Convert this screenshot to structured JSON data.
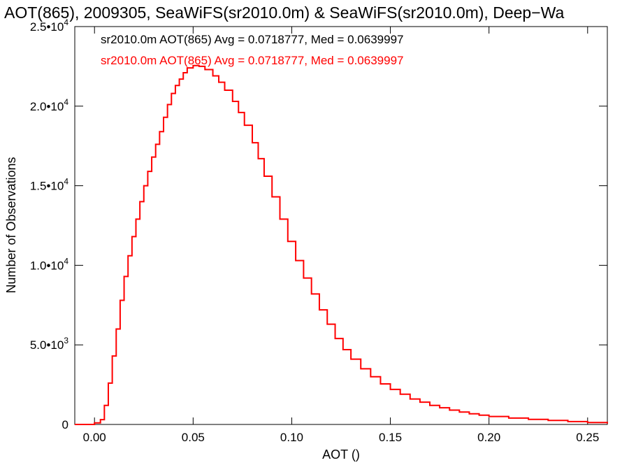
{
  "chart_data": {
    "type": "histogram-step",
    "title": "AOT(865), 2009305, SeaWiFS(sr2010.0m) & SeaWiFS(sr2010.0m), Deep−Wa",
    "xlabel": "AOT ()",
    "ylabel": "Number of Observations",
    "xlim": [
      -0.01,
      0.26
    ],
    "ylim": [
      0,
      25000
    ],
    "x_ticks": [
      {
        "value": 0.0,
        "label": "0.00"
      },
      {
        "value": 0.05,
        "label": "0.05"
      },
      {
        "value": 0.1,
        "label": "0.10"
      },
      {
        "value": 0.15,
        "label": "0.15"
      },
      {
        "value": 0.2,
        "label": "0.20"
      },
      {
        "value": 0.25,
        "label": "0.25"
      }
    ],
    "y_ticks": [
      {
        "value": 0,
        "mant": "0",
        "exp": ""
      },
      {
        "value": 5000,
        "mant": "5.0•10",
        "exp": "3"
      },
      {
        "value": 10000,
        "mant": "1.0•10",
        "exp": "4"
      },
      {
        "value": 15000,
        "mant": "1.5•10",
        "exp": "4"
      },
      {
        "value": 20000,
        "mant": "2.0•10",
        "exp": "4"
      },
      {
        "value": 25000,
        "mant": "2.5•10",
        "exp": "4"
      }
    ],
    "legend": [
      {
        "text": "sr2010.0m AOT(865) Avg = 0.0718777, Med = 0.0639997",
        "color": "#000000"
      },
      {
        "text": "sr2010.0m AOT(865) Avg = 0.0718777, Med = 0.0639997",
        "color": "#ff0000"
      }
    ],
    "series": [
      {
        "color": "#ff0000",
        "points": [
          [
            -0.01,
            0
          ],
          [
            0.0,
            100
          ],
          [
            0.003,
            300
          ],
          [
            0.005,
            1200
          ],
          [
            0.007,
            2600
          ],
          [
            0.009,
            4300
          ],
          [
            0.011,
            6000
          ],
          [
            0.013,
            7800
          ],
          [
            0.015,
            9300
          ],
          [
            0.017,
            10600
          ],
          [
            0.019,
            11800
          ],
          [
            0.021,
            12900
          ],
          [
            0.023,
            14000
          ],
          [
            0.025,
            15000
          ],
          [
            0.027,
            15900
          ],
          [
            0.029,
            16800
          ],
          [
            0.031,
            17600
          ],
          [
            0.033,
            18400
          ],
          [
            0.035,
            19300
          ],
          [
            0.037,
            20100
          ],
          [
            0.039,
            20800
          ],
          [
            0.041,
            21300
          ],
          [
            0.043,
            21700
          ],
          [
            0.045,
            22100
          ],
          [
            0.047,
            22400
          ],
          [
            0.05,
            22550
          ],
          [
            0.053,
            22500
          ],
          [
            0.056,
            22300
          ],
          [
            0.06,
            21900
          ],
          [
            0.063,
            21500
          ],
          [
            0.066,
            21000
          ],
          [
            0.07,
            20300
          ],
          [
            0.073,
            19600
          ],
          [
            0.076,
            18800
          ],
          [
            0.08,
            17700
          ],
          [
            0.083,
            16700
          ],
          [
            0.086,
            15600
          ],
          [
            0.09,
            14300
          ],
          [
            0.094,
            12900
          ],
          [
            0.098,
            11500
          ],
          [
            0.102,
            10300
          ],
          [
            0.106,
            9200
          ],
          [
            0.11,
            8200
          ],
          [
            0.114,
            7200
          ],
          [
            0.118,
            6300
          ],
          [
            0.122,
            5400
          ],
          [
            0.126,
            4700
          ],
          [
            0.13,
            4100
          ],
          [
            0.135,
            3500
          ],
          [
            0.14,
            3000
          ],
          [
            0.145,
            2550
          ],
          [
            0.15,
            2200
          ],
          [
            0.155,
            1900
          ],
          [
            0.16,
            1600
          ],
          [
            0.165,
            1400
          ],
          [
            0.17,
            1200
          ],
          [
            0.175,
            1050
          ],
          [
            0.18,
            900
          ],
          [
            0.185,
            780
          ],
          [
            0.19,
            670
          ],
          [
            0.195,
            580
          ],
          [
            0.2,
            500
          ],
          [
            0.21,
            400
          ],
          [
            0.22,
            320
          ],
          [
            0.23,
            250
          ],
          [
            0.24,
            180
          ],
          [
            0.25,
            120
          ],
          [
            0.26,
            60
          ]
        ]
      }
    ]
  }
}
